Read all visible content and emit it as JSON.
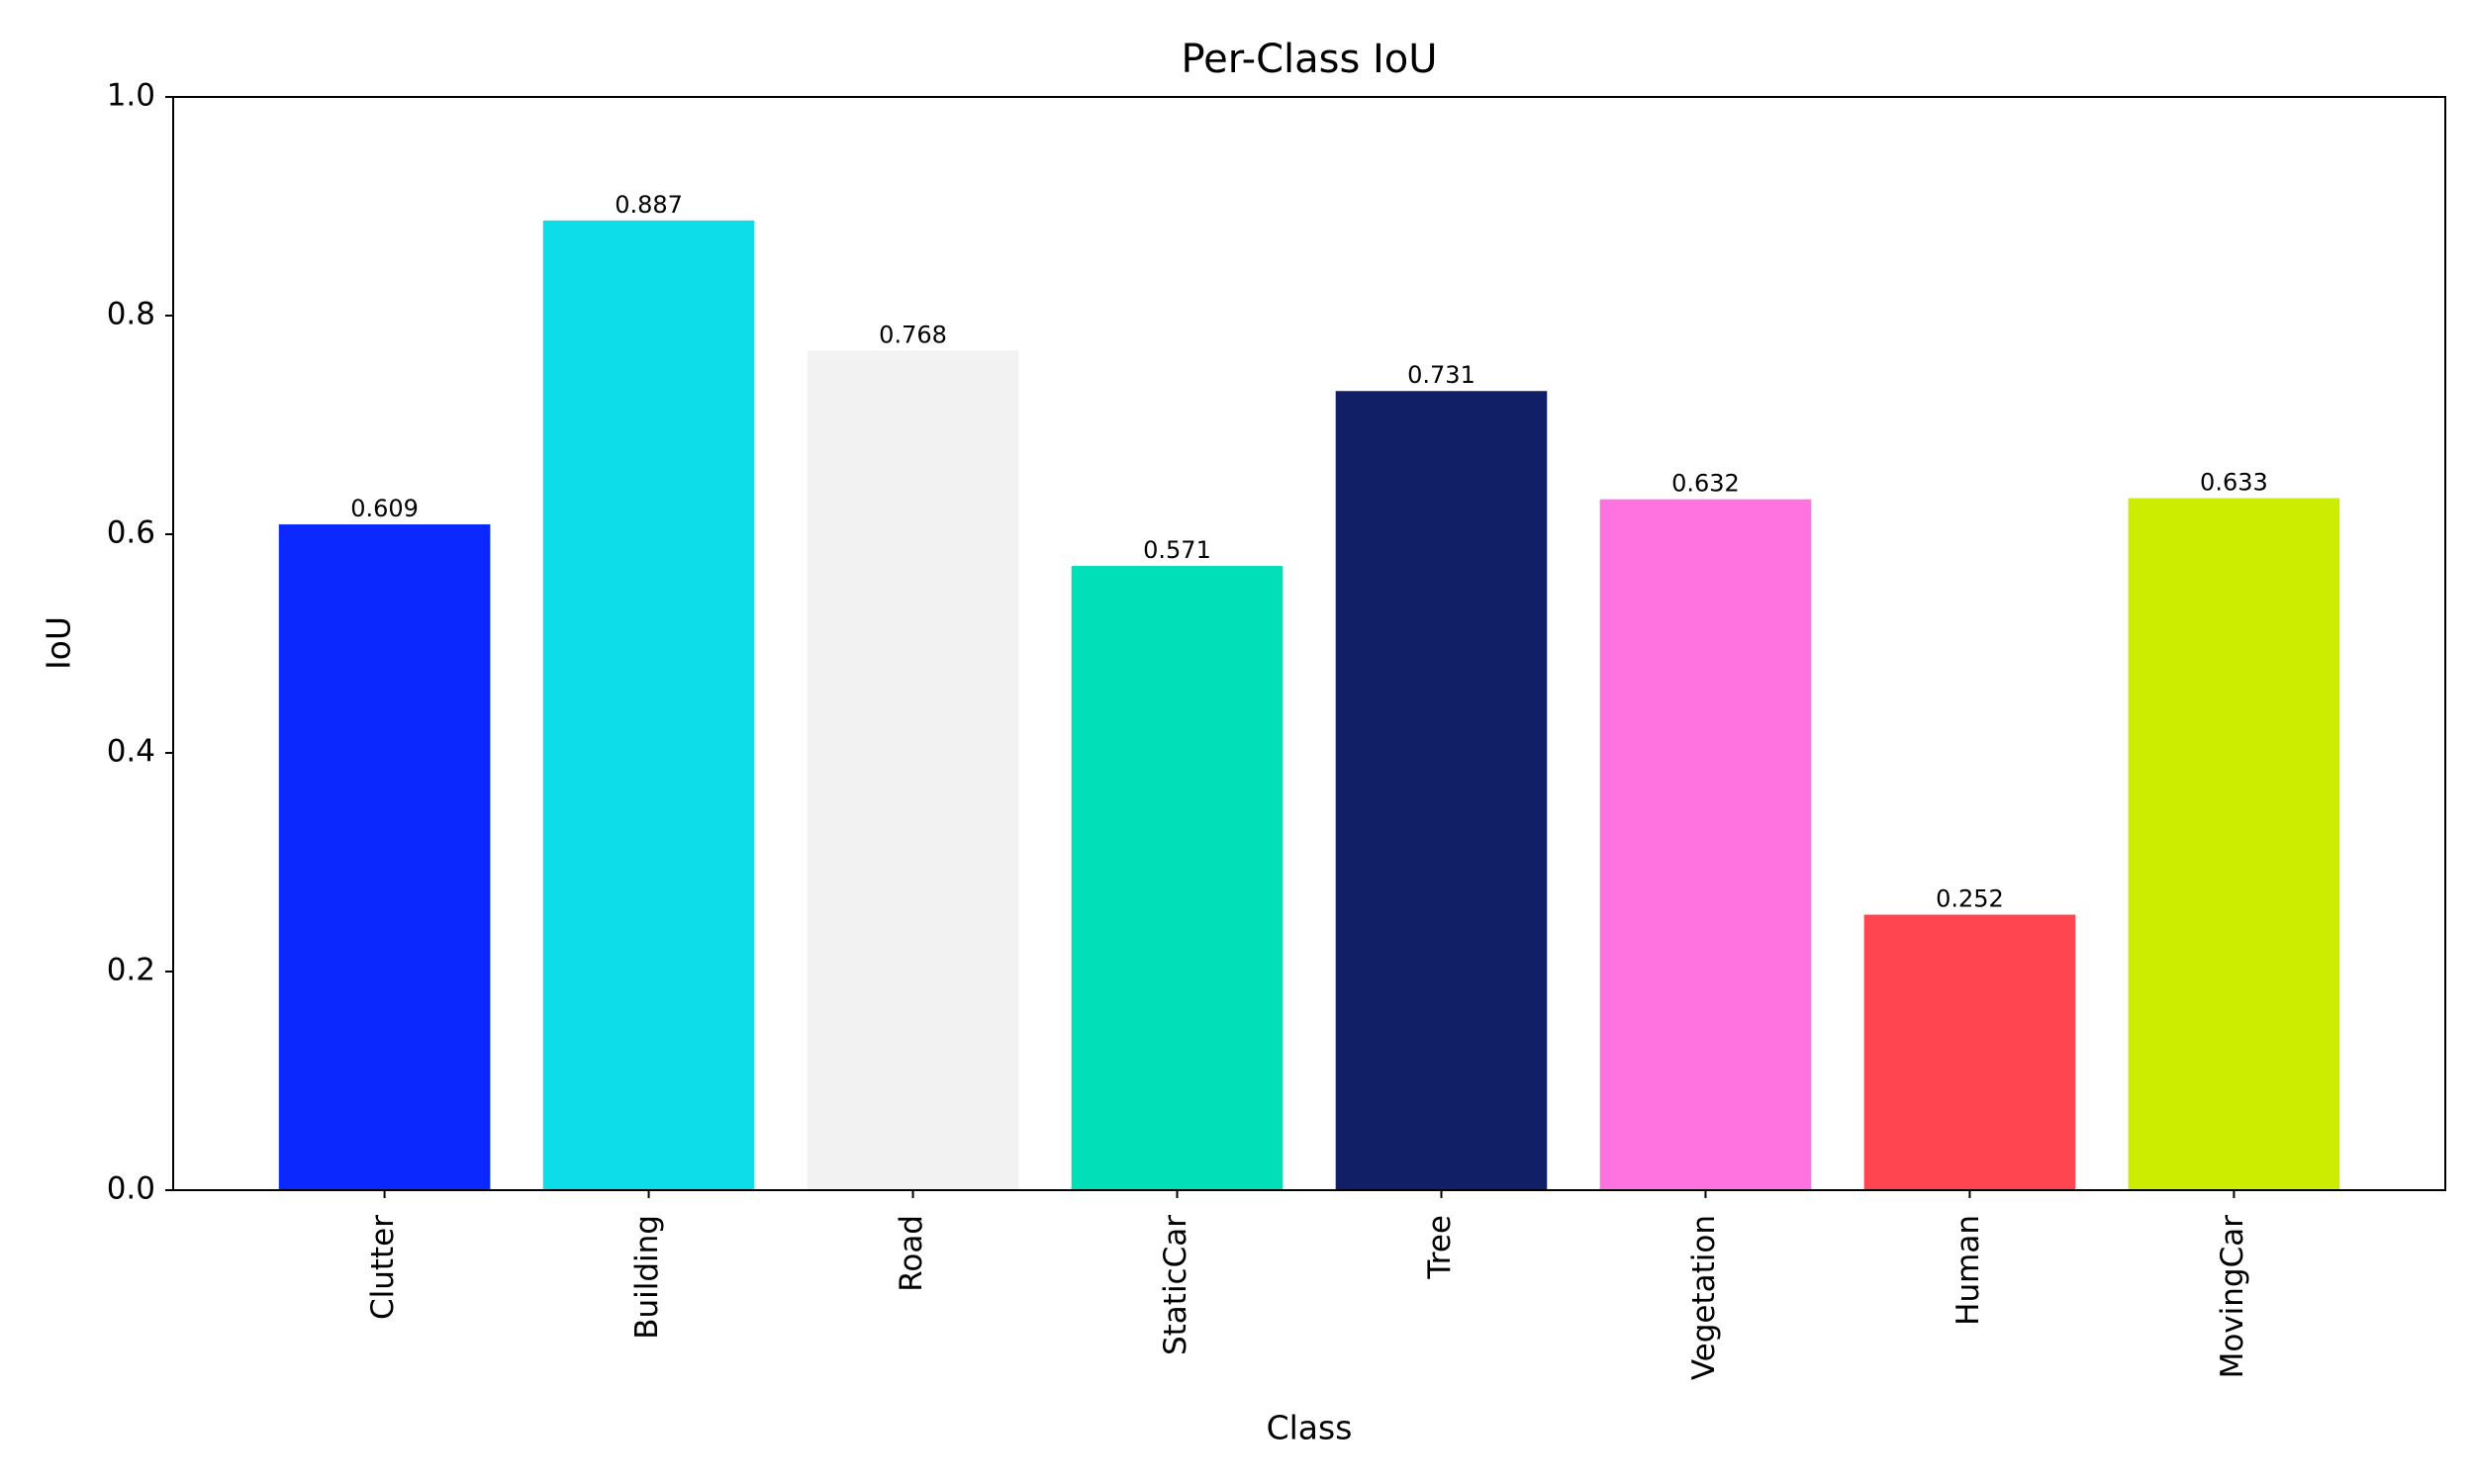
{
  "chart_data": {
    "type": "bar",
    "title": "Per-Class IoU",
    "x_label": "Class",
    "y_label": "IoU",
    "categories": [
      "Clutter",
      "Building",
      "Road",
      "StaticCar",
      "Tree",
      "Vegetation",
      "Human",
      "MovingCar"
    ],
    "values": [
      0.609,
      0.887,
      0.768,
      0.571,
      0.731,
      0.632,
      0.252,
      0.633
    ],
    "colors": [
      "#0a28ff",
      "#0ddde9",
      "#f2f2f2",
      "#00dfb8",
      "#111f66",
      "#ff73e0",
      "#ff4550",
      "#ccec00"
    ],
    "ylim": [
      0,
      1
    ],
    "yticks": [
      {
        "value": 0,
        "label": "0.0"
      },
      0.2,
      0.4,
      0.6,
      0.8,
      {
        "value": 1,
        "label": "1.0"
      }
    ],
    "grid": false
  }
}
